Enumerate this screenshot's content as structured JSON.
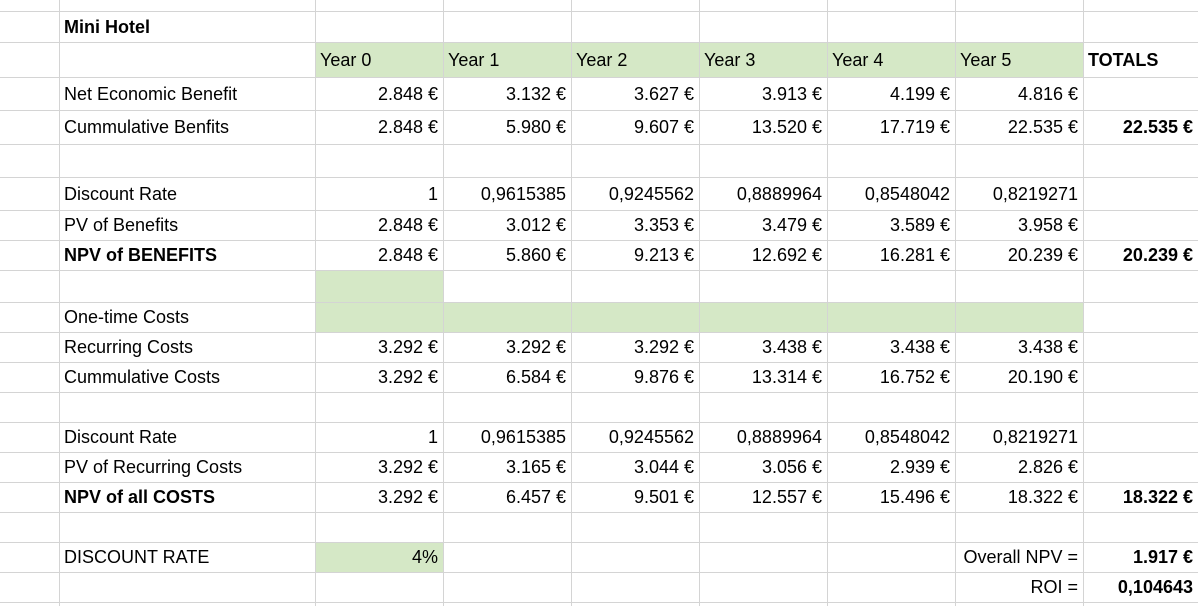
{
  "sheet": {
    "title": "Mini Hotel",
    "fill_color": "#d5e8c6",
    "grid_color": "#d4d4d4",
    "headers": [
      "Year 0",
      "Year 1",
      "Year 2",
      "Year 3",
      "Year 4",
      "Year 5",
      "TOTALS"
    ],
    "rows": [
      {
        "label": "Net Economic Benefit",
        "bold": false,
        "values": [
          "2.848 €",
          "3.132 €",
          "3.627 €",
          "3.913 €",
          "4.199 €",
          "4.816 €",
          ""
        ]
      },
      {
        "label": "Cummulative Benfits",
        "bold": false,
        "values": [
          "2.848 €",
          "5.980 €",
          "9.607 €",
          "13.520 €",
          "17.719 €",
          "22.535 €",
          "22.535 €"
        ]
      },
      {
        "label": "",
        "bold": false,
        "values": [
          "",
          "",
          "",
          "",
          "",
          "",
          ""
        ]
      },
      {
        "label": "Discount Rate",
        "bold": false,
        "values": [
          "1",
          "0,9615385",
          "0,9245562",
          "0,8889964",
          "0,8548042",
          "0,8219271",
          ""
        ]
      },
      {
        "label": "PV of Benefits",
        "bold": false,
        "values": [
          "2.848 €",
          "3.012 €",
          "3.353 €",
          "3.479 €",
          "3.589 €",
          "3.958 €",
          ""
        ]
      },
      {
        "label": "NPV of BENEFITS",
        "bold": true,
        "values": [
          "2.848 €",
          "5.860 €",
          "9.213 €",
          "12.692 €",
          "16.281 €",
          "20.239 €",
          "20.239 €"
        ]
      },
      {
        "label": "",
        "bold": false,
        "values": [
          "",
          "",
          "",
          "",
          "",
          "",
          ""
        ]
      },
      {
        "label": "One-time Costs",
        "bold": false,
        "values": [
          "",
          "",
          "",
          "",
          "",
          "",
          ""
        ]
      },
      {
        "label": "Recurring Costs",
        "bold": false,
        "values": [
          "3.292 €",
          "3.292 €",
          "3.292 €",
          "3.438 €",
          "3.438 €",
          "3.438 €",
          ""
        ]
      },
      {
        "label": "Cummulative Costs",
        "bold": false,
        "values": [
          "3.292 €",
          "6.584 €",
          "9.876 €",
          "13.314 €",
          "16.752 €",
          "20.190 €",
          ""
        ]
      },
      {
        "label": "",
        "bold": false,
        "values": [
          "",
          "",
          "",
          "",
          "",
          "",
          ""
        ]
      },
      {
        "label": "Discount Rate",
        "bold": false,
        "values": [
          "1",
          "0,9615385",
          "0,9245562",
          "0,8889964",
          "0,8548042",
          "0,8219271",
          ""
        ]
      },
      {
        "label": "PV of Recurring Costs",
        "bold": false,
        "values": [
          "3.292 €",
          "3.165 €",
          "3.044 €",
          "3.056 €",
          "2.939 €",
          "2.826 €",
          ""
        ]
      },
      {
        "label": "NPV of all COSTS",
        "bold": true,
        "values": [
          "3.292 €",
          "6.457 €",
          "9.501 €",
          "12.557 €",
          "15.496 €",
          "18.322 €",
          "18.322 €"
        ]
      },
      {
        "label": "",
        "bold": false,
        "values": [
          "",
          "",
          "",
          "",
          "",
          "",
          ""
        ]
      },
      {
        "label": "DISCOUNT RATE",
        "bold": false,
        "values": [
          "4%",
          "",
          "",
          "",
          "",
          "",
          ""
        ]
      }
    ],
    "summary": [
      {
        "label": "Overall NPV =",
        "value": "1.917 €"
      },
      {
        "label": "ROI =",
        "value": "0,104643"
      }
    ]
  }
}
